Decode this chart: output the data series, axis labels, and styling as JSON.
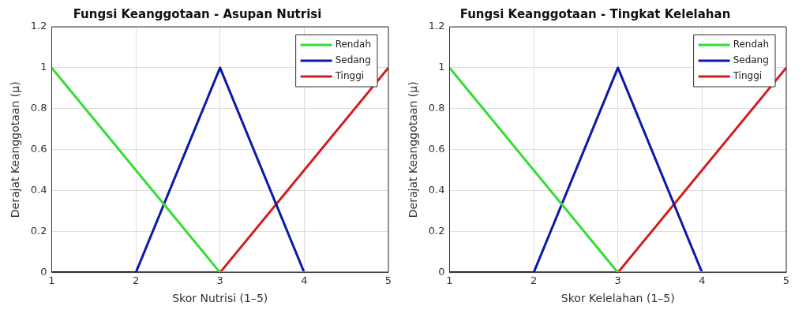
{
  "chart_data": [
    {
      "type": "line",
      "title": "Fungsi Keanggotaan - Asupan Nutrisi",
      "xlabel": "Skor Nutrisi (1–5)",
      "ylabel": "Derajat Keanggotaan (μ)",
      "xlim": [
        1,
        5
      ],
      "xticks": [
        1,
        2,
        3,
        4,
        5
      ],
      "ylim": [
        0,
        1.2
      ],
      "yticks": [
        0,
        0.2,
        0.4,
        0.6,
        0.8,
        1,
        1.2
      ],
      "grid": true,
      "legend": "top right",
      "line_style": "solid",
      "marker": "none",
      "series": [
        {
          "name": "Rendah",
          "color": "#33dd33",
          "x": [
            1,
            3,
            5
          ],
          "values": [
            1,
            0,
            0
          ]
        },
        {
          "name": "Sedang",
          "color": "#0a1aa8",
          "x": [
            1,
            2,
            3,
            4,
            5
          ],
          "values": [
            0,
            0,
            1,
            0,
            0
          ]
        },
        {
          "name": "Tinggi",
          "color": "#d41c1c",
          "x": [
            1,
            3,
            5
          ],
          "values": [
            0,
            0,
            1
          ]
        }
      ]
    },
    {
      "type": "line",
      "title": "Fungsi Keanggotaan - Tingkat Kelelahan",
      "xlabel": "Skor Kelelahan (1–5)",
      "ylabel": "Derajat Keanggotaan (μ)",
      "xlim": [
        1,
        5
      ],
      "xticks": [
        1,
        2,
        3,
        4,
        5
      ],
      "ylim": [
        0,
        1.2
      ],
      "yticks": [
        0,
        0.2,
        0.4,
        0.6,
        0.8,
        1,
        1.2
      ],
      "grid": true,
      "legend": "top right",
      "line_style": "solid",
      "marker": "none",
      "series": [
        {
          "name": "Rendah",
          "color": "#33dd33",
          "x": [
            1,
            3,
            5
          ],
          "values": [
            1,
            0,
            0
          ]
        },
        {
          "name": "Sedang",
          "color": "#0a1aa8",
          "x": [
            1,
            2,
            3,
            4,
            5
          ],
          "values": [
            0,
            0,
            1,
            0,
            0
          ]
        },
        {
          "name": "Tinggi",
          "color": "#d41c1c",
          "x": [
            1,
            3,
            5
          ],
          "values": [
            0,
            0,
            1
          ]
        }
      ]
    }
  ]
}
